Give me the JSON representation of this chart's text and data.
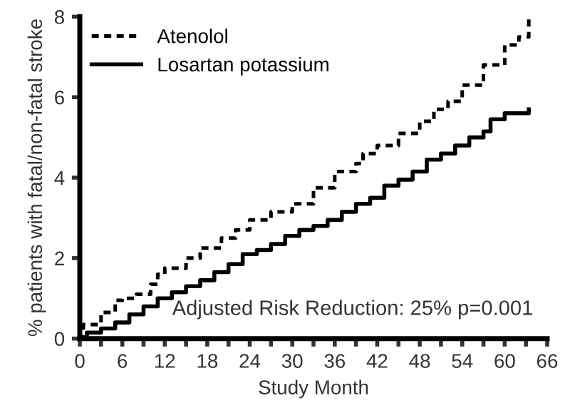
{
  "chart_data": {
    "type": "step",
    "xlabel": "Study Month",
    "ylabel": "% patients with fatal/non-fatal stroke",
    "annotations": [
      {
        "text": "Adjusted Risk Reduction: 25% p=0.001"
      }
    ],
    "series": [
      {
        "name": "Atenolol",
        "color": "#000000",
        "line_style": "dotted",
        "x": [
          0,
          0.5,
          3,
          5,
          6,
          8,
          10,
          11,
          12,
          15,
          17,
          18,
          20,
          22,
          24,
          27,
          30,
          33,
          36,
          39,
          40,
          42,
          45,
          48,
          50,
          52,
          54,
          57,
          60,
          62,
          63.4
        ],
        "values": [
          0,
          0.35,
          0.65,
          0.95,
          1.0,
          1.1,
          1.35,
          1.6,
          1.75,
          2.0,
          2.25,
          2.25,
          2.5,
          2.7,
          2.95,
          3.15,
          3.35,
          3.75,
          4.15,
          4.35,
          4.6,
          4.8,
          5.1,
          5.4,
          5.7,
          5.9,
          6.3,
          6.8,
          7.3,
          7.5,
          8.0
        ]
      },
      {
        "name": "Losartan potassium",
        "color": "#000000",
        "line_style": "solid",
        "x": [
          0,
          1,
          3,
          5,
          7,
          9,
          11,
          13,
          15,
          17,
          19,
          21,
          23,
          25,
          27,
          29,
          31,
          33,
          35,
          37,
          39,
          41,
          43,
          45,
          47,
          49,
          51,
          53,
          55,
          57,
          58,
          60,
          63,
          63.4
        ],
        "values": [
          0,
          0.15,
          0.25,
          0.4,
          0.6,
          0.8,
          1.0,
          1.15,
          1.3,
          1.45,
          1.65,
          1.85,
          2.1,
          2.2,
          2.35,
          2.55,
          2.7,
          2.8,
          2.95,
          3.15,
          3.35,
          3.5,
          3.8,
          3.95,
          4.15,
          4.45,
          4.6,
          4.8,
          5.0,
          5.15,
          5.45,
          5.6,
          5.6,
          5.7
        ]
      }
    ],
    "xlim": [
      0,
      66
    ],
    "xticks": [
      0,
      {
        "value": 3,
        "label": null
      },
      6,
      {
        "value": 9,
        "label": null
      },
      12,
      {
        "value": 15,
        "label": null
      },
      18,
      {
        "value": 21,
        "label": null
      },
      24,
      {
        "value": 27,
        "label": null
      },
      30,
      {
        "value": 33,
        "label": null
      },
      36,
      {
        "value": 39,
        "label": null
      },
      42,
      {
        "value": 45,
        "label": null
      },
      48,
      {
        "value": 51,
        "label": null
      },
      54,
      {
        "value": 57,
        "label": null
      },
      60,
      {
        "value": 63,
        "label": null
      },
      66
    ],
    "ylim": [
      0,
      8
    ],
    "yticks": [
      0,
      2,
      4,
      6,
      8
    ],
    "grid": false,
    "legend": "top left"
  }
}
